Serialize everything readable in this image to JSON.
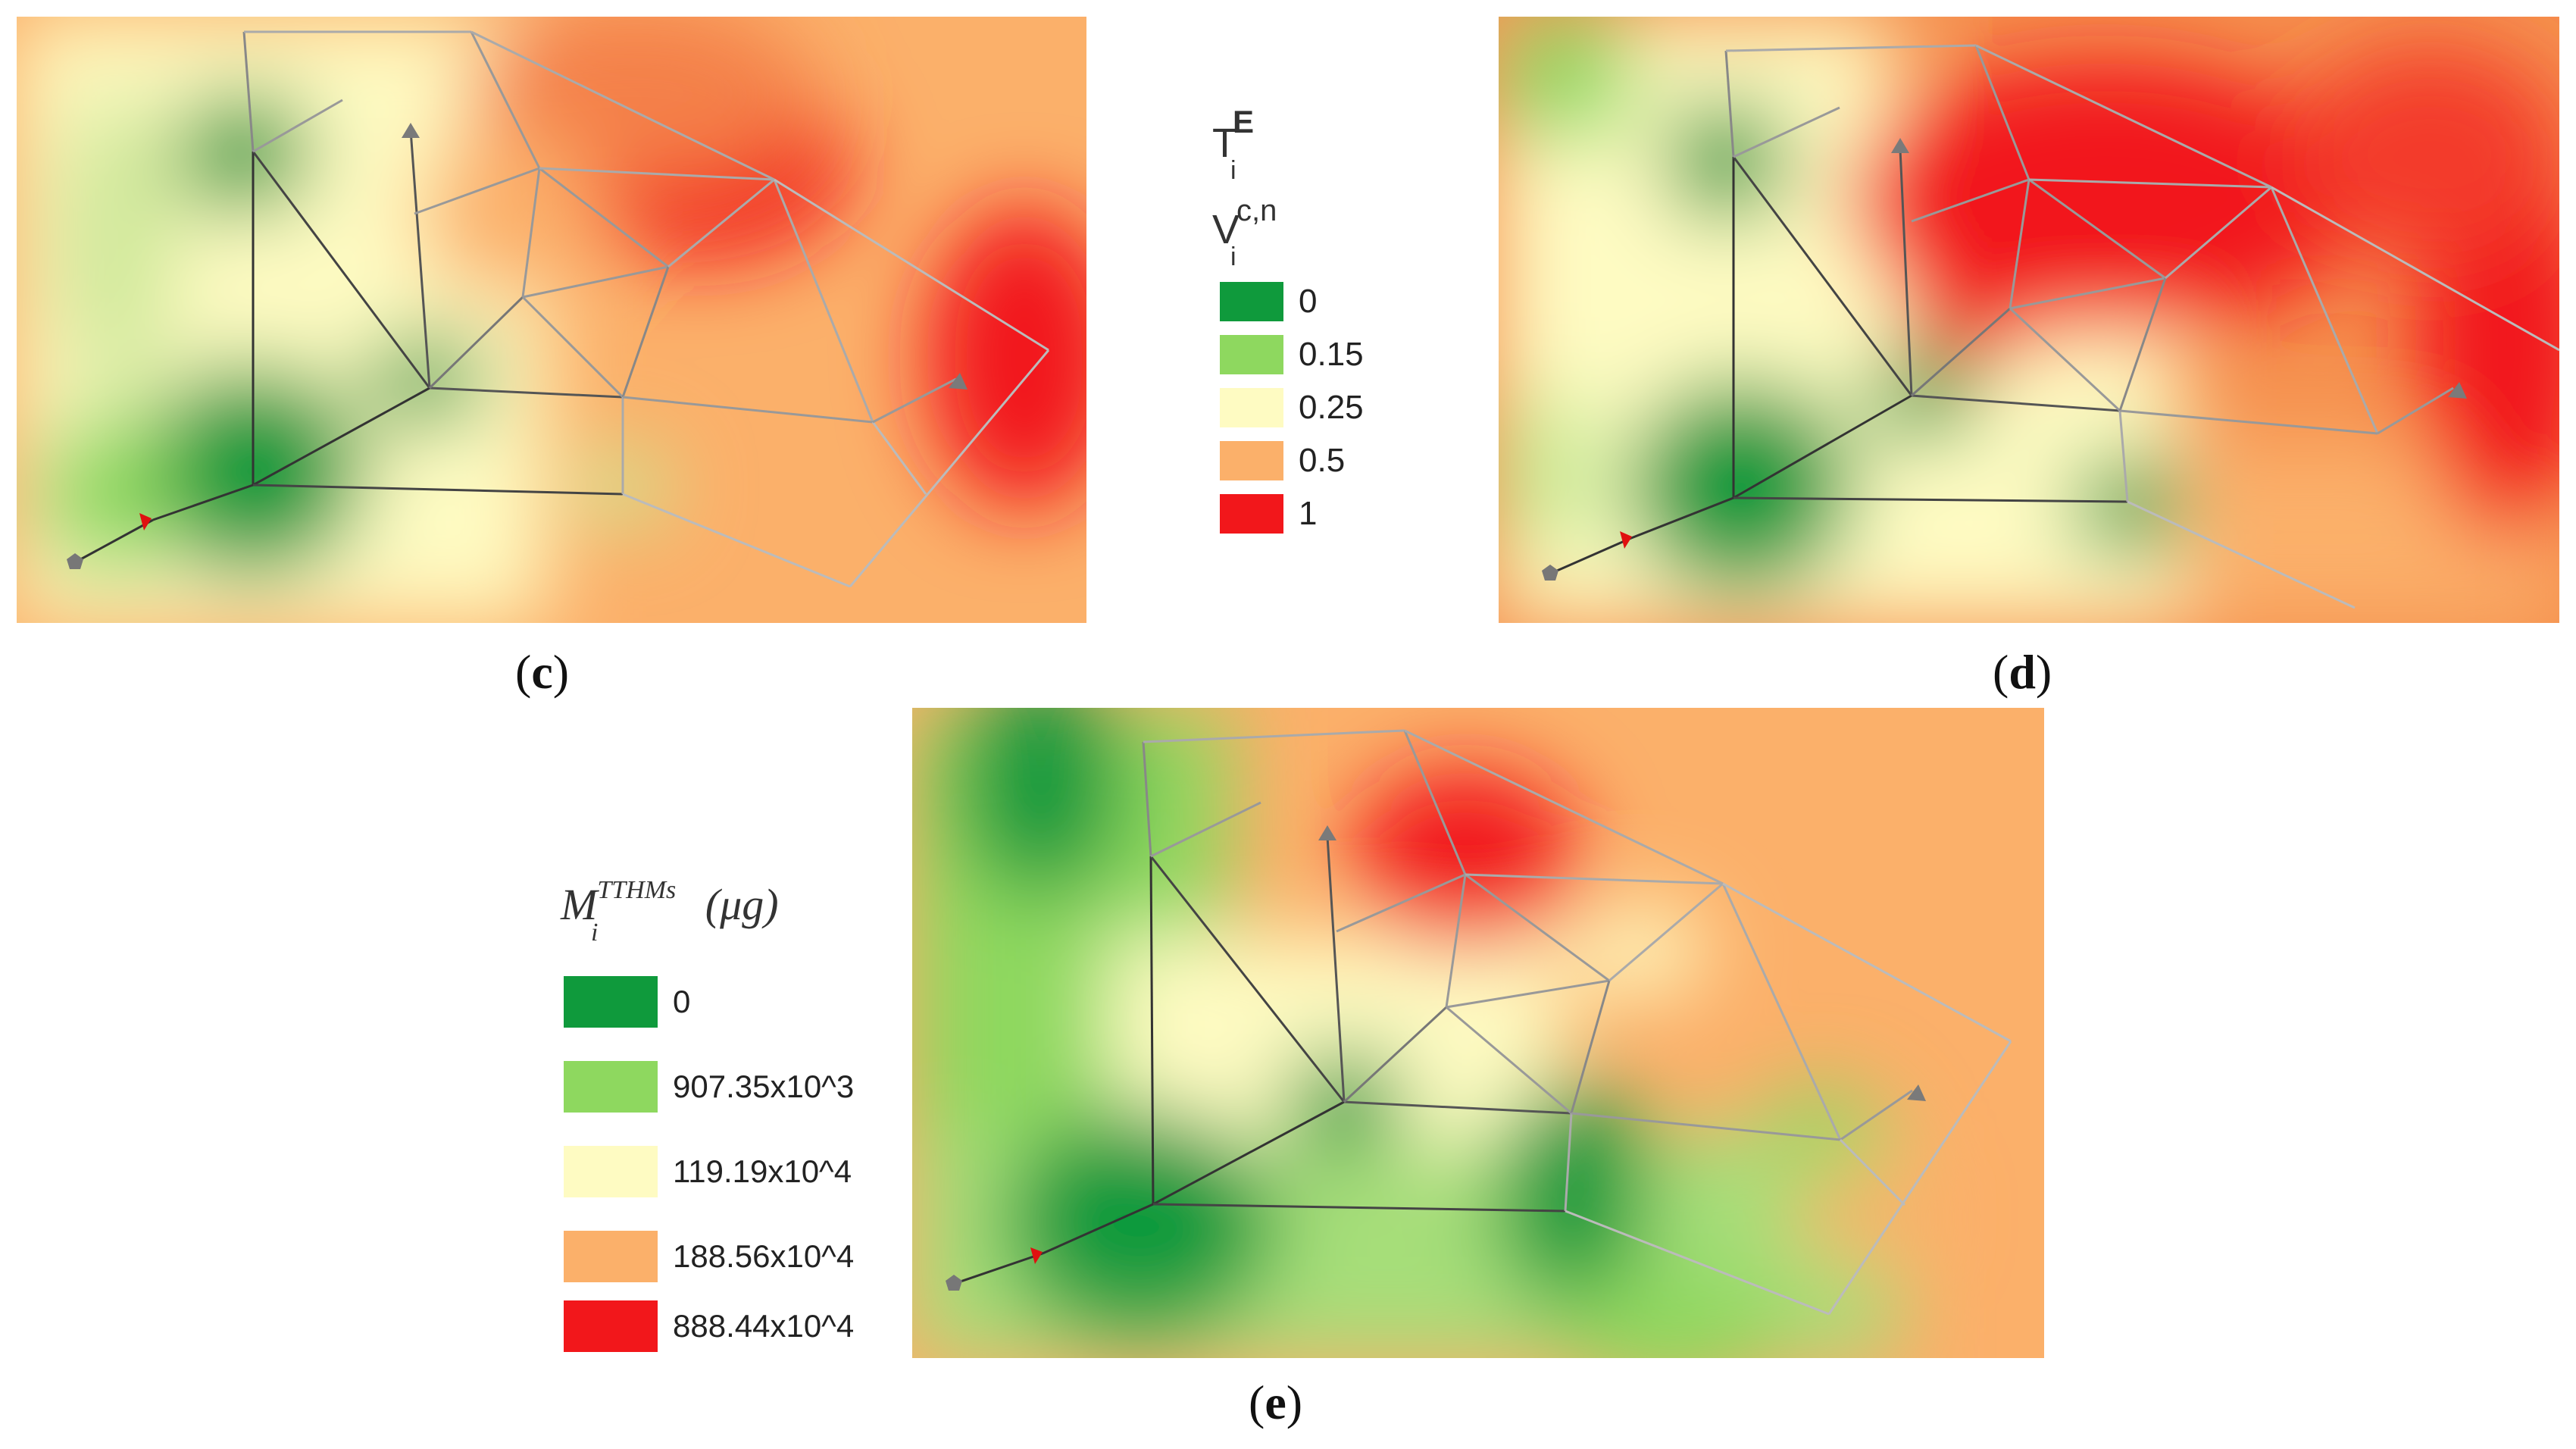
{
  "panels": {
    "c": {
      "caption_open": "(",
      "caption_letter": "c",
      "caption_close": ")"
    },
    "d": {
      "caption_open": "(",
      "caption_letter": "d",
      "caption_close": ")"
    },
    "e": {
      "caption_open": "(",
      "caption_letter": "e",
      "caption_close": ")"
    }
  },
  "legend_top": {
    "title_line1_base": "T",
    "title_line1_sup": "E",
    "title_line1_sub": "i",
    "title_line2_base": "V",
    "title_line2_sup": "c,n",
    "title_line2_sub": "i",
    "items": [
      {
        "label": "0",
        "color": "#0f9a3c"
      },
      {
        "label": "0.15",
        "color": "#8ed85f"
      },
      {
        "label": "0.25",
        "color": "#fefbc2"
      },
      {
        "label": "0.5",
        "color": "#fbb06a"
      },
      {
        "label": "1",
        "color": "#f2171b"
      }
    ]
  },
  "legend_bottom": {
    "title_base": "M",
    "title_sup": "TTHMs",
    "title_sub": "i",
    "title_unit": "(μg)",
    "items": [
      {
        "label": "0",
        "color": "#0f9a3c"
      },
      {
        "label": "907.35x10^3",
        "color": "#8ed85f"
      },
      {
        "label": "119.19x10^4",
        "color": "#fefbc2"
      },
      {
        "label": "188.56x10^4",
        "color": "#fbb06a"
      },
      {
        "label": "888.44x10^4",
        "color": "#f2171b"
      }
    ]
  },
  "colors": {
    "green_dark": "#0f9a3c",
    "green_light": "#8ed85f",
    "cream": "#fefbc2",
    "orange": "#fbb06a",
    "red": "#f2171b",
    "pipe_dark": "#333333",
    "pipe_light": "#b8b8b8",
    "source_node": "#777777",
    "flow_arrow": "#e01010",
    "tank_arrow": "#7a7a7a"
  }
}
